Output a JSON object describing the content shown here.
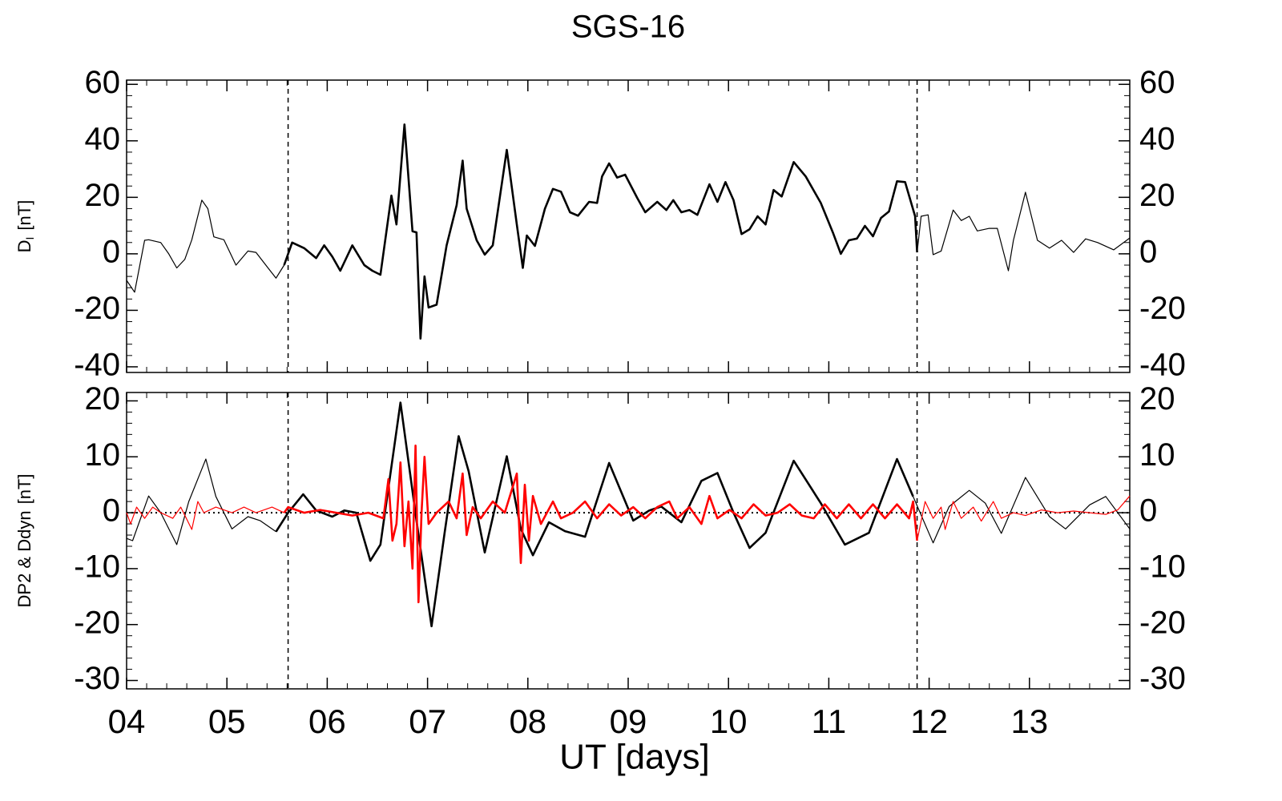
{
  "chart_data": [
    {
      "type": "line",
      "title": "SGS-16",
      "ylabel": {
        "main": "D",
        "sub": "I",
        "unit": "[nT]"
      },
      "xlim": [
        4,
        14
      ],
      "ylim": [
        -42,
        61.5
      ],
      "yticks": [
        -40,
        -20,
        0,
        20,
        40,
        60
      ],
      "x_minor": 5,
      "y_minor": 5,
      "vlines": [
        5.61,
        11.88
      ],
      "thick_between_vlines": true,
      "series": [
        {
          "color": "#000000",
          "x": [
            4.0,
            4.08,
            4.18,
            4.22,
            4.34,
            4.42,
            4.5,
            4.58,
            4.65,
            4.75,
            4.81,
            4.87,
            4.97,
            5.09,
            5.21,
            5.29,
            5.41,
            5.49,
            5.57,
            5.65,
            5.77,
            5.89,
            5.97,
            6.05,
            6.13,
            6.25,
            6.37,
            6.45,
            6.53,
            6.64,
            6.69,
            6.77,
            6.85,
            6.89,
            6.93,
            6.97,
            7.01,
            7.09,
            7.19,
            7.29,
            7.35,
            7.39,
            7.49,
            7.57,
            7.65,
            7.79,
            7.89,
            7.95,
            7.99,
            8.07,
            8.17,
            8.25,
            8.33,
            8.42,
            8.5,
            8.61,
            8.69,
            8.74,
            8.81,
            8.89,
            8.97,
            9.09,
            9.17,
            9.29,
            9.38,
            9.45,
            9.53,
            9.61,
            9.69,
            9.81,
            9.89,
            9.97,
            10.05,
            10.13,
            10.21,
            10.29,
            10.37,
            10.45,
            10.53,
            10.65,
            10.77,
            10.92,
            11.04,
            11.12,
            11.2,
            11.28,
            11.36,
            11.44,
            11.52,
            11.6,
            11.68,
            11.76,
            11.86,
            11.88,
            11.92,
            11.99,
            12.04,
            12.12,
            12.24,
            12.32,
            12.4,
            12.48,
            12.6,
            12.68,
            12.79,
            12.84,
            12.96,
            13.08,
            13.2,
            13.32,
            13.44,
            13.56,
            13.68,
            13.84,
            14.0
          ],
          "values": [
            -9.4,
            -13.6,
            4.8,
            5,
            4,
            0,
            -5,
            -2,
            5,
            19,
            16,
            6,
            5,
            -4,
            1,
            0.5,
            -5,
            -8.6,
            -4,
            4,
            2,
            -1.5,
            3,
            -1,
            -6,
            3,
            -4,
            -6,
            -7.4,
            20.6,
            10.4,
            45.8,
            8,
            7.6,
            -30,
            -8,
            -19,
            -18,
            3,
            17.2,
            33,
            16,
            4.8,
            -0.3,
            3,
            36.8,
            10.4,
            -5,
            6.5,
            2.8,
            16,
            23,
            22,
            14.7,
            13.5,
            18.4,
            18,
            27.4,
            32,
            27,
            28,
            19.8,
            14.7,
            18.4,
            15.5,
            19,
            14.7,
            15.5,
            13.8,
            24.6,
            18.4,
            25.4,
            19,
            7,
            8.7,
            13.3,
            10.4,
            22.6,
            20.3,
            32.5,
            27.4,
            18,
            7.6,
            0,
            4.8,
            5.4,
            9.9,
            6.2,
            12.7,
            15,
            25.7,
            25.4,
            13.3,
            0.5,
            13.3,
            13.8,
            -0.3,
            1,
            15.5,
            11.8,
            13.3,
            8.1,
            9,
            9,
            -6,
            4.8,
            21.8,
            4.8,
            2,
            4.8,
            0.5,
            5.3,
            4,
            1.4,
            5.6
          ]
        }
      ]
    },
    {
      "type": "line",
      "xlabel": "UT [days]",
      "ylabel": {
        "main": "DP2 & Ddyn",
        "unit": "[nT]"
      },
      "xlim": [
        4,
        14
      ],
      "ylim": [
        -31.5,
        21.5
      ],
      "yticks": [
        -30,
        -20,
        -10,
        0,
        10,
        20
      ],
      "xticks": [
        {
          "value": 4,
          "label": "04"
        },
        {
          "value": 5,
          "label": "05"
        },
        {
          "value": 6,
          "label": "06"
        },
        {
          "value": 7,
          "label": "07"
        },
        {
          "value": 8,
          "label": "08"
        },
        {
          "value": 9,
          "label": "09"
        },
        {
          "value": 10,
          "label": "10"
        },
        {
          "value": 11,
          "label": "11"
        },
        {
          "value": 12,
          "label": "12"
        },
        {
          "value": 13,
          "label": "13"
        }
      ],
      "x_minor": 5,
      "y_minor": 5,
      "vlines": [
        5.61,
        11.88
      ],
      "thick_between_vlines": true,
      "zero_line": true,
      "series": [
        {
          "color": "#000000",
          "x": [
            4.0,
            4.06,
            4.22,
            4.34,
            4.5,
            4.62,
            4.79,
            4.89,
            5.05,
            5.21,
            5.33,
            5.49,
            5.61,
            5.76,
            5.89,
            6.05,
            6.17,
            6.29,
            6.43,
            6.53,
            6.73,
            6.89,
            7.04,
            7.17,
            7.31,
            7.41,
            7.57,
            7.79,
            7.93,
            8.05,
            8.21,
            8.37,
            8.57,
            8.81,
            9.05,
            9.21,
            9.33,
            9.53,
            9.73,
            9.89,
            10.05,
            10.21,
            10.37,
            10.65,
            10.92,
            11.16,
            11.4,
            11.68,
            11.84,
            12.04,
            12.2,
            12.4,
            12.56,
            12.72,
            12.96,
            13.2,
            13.36,
            13.6,
            13.76,
            14.0
          ],
          "values": [
            -4.6,
            -5,
            3,
            0,
            -5.7,
            2,
            9.6,
            2.9,
            -2.9,
            -0.7,
            -1.4,
            -3.4,
            0,
            3.3,
            0.4,
            -0.7,
            0.4,
            0,
            -8.6,
            -5.7,
            19.7,
            -1.4,
            -20.3,
            -3.6,
            13.7,
            7.4,
            -7.1,
            10.1,
            -2.9,
            -7.6,
            -1.7,
            -3.3,
            -4.3,
            8.9,
            -1.4,
            0.4,
            1.1,
            -1.7,
            5.7,
            7.1,
            0,
            -6.3,
            -3.6,
            9.3,
            1.7,
            -5.7,
            -3.6,
            9.6,
            2.9,
            -5.4,
            1.1,
            4,
            1.7,
            -3.7,
            6.3,
            -0.7,
            -2.9,
            1.4,
            2.9,
            -2.9
          ]
        },
        {
          "color": "#ff0000",
          "x": [
            4.0,
            4.04,
            4.1,
            4.18,
            4.26,
            4.34,
            4.46,
            4.54,
            4.65,
            4.71,
            4.77,
            4.89,
            5.05,
            5.17,
            5.29,
            5.45,
            5.57,
            5.61,
            5.77,
            5.93,
            6.09,
            6.25,
            6.41,
            6.56,
            6.61,
            6.65,
            6.69,
            6.73,
            6.77,
            6.81,
            6.85,
            6.88,
            6.91,
            6.94,
            6.97,
            7.01,
            7.09,
            7.21,
            7.29,
            7.35,
            7.39,
            7.45,
            7.53,
            7.65,
            7.77,
            7.89,
            7.93,
            7.97,
            8.01,
            8.05,
            8.13,
            8.25,
            8.33,
            8.45,
            8.57,
            8.69,
            8.81,
            8.93,
            9.05,
            9.17,
            9.29,
            9.41,
            9.49,
            9.61,
            9.73,
            9.81,
            9.89,
            10.01,
            10.13,
            10.25,
            10.37,
            10.49,
            10.61,
            10.73,
            10.85,
            10.96,
            11.08,
            11.2,
            11.32,
            11.44,
            11.56,
            11.68,
            11.8,
            11.84,
            11.88,
            11.96,
            12.04,
            12.12,
            12.16,
            12.24,
            12.32,
            12.44,
            12.52,
            12.64,
            12.72,
            12.84,
            12.96,
            13.12,
            13.28,
            13.44,
            13.6,
            13.76,
            13.88,
            14.0
          ],
          "values": [
            0,
            -2,
            1,
            -1,
            1,
            0,
            -1,
            1,
            -3,
            2,
            0,
            1,
            0,
            1,
            0,
            1,
            0,
            1,
            0,
            0.5,
            0,
            -0.5,
            0,
            -1,
            6,
            -5,
            -2,
            9,
            -6,
            2,
            -10,
            12,
            -16,
            0,
            10,
            -2,
            0,
            2,
            -1,
            7,
            -4,
            1,
            -1,
            2,
            0,
            7,
            -9,
            5,
            -5,
            3,
            -2,
            2,
            -1,
            0,
            2,
            -1,
            1.5,
            -0.5,
            1,
            -1,
            1,
            2,
            -1,
            1,
            -2,
            3,
            -1,
            0.5,
            -1,
            1.5,
            -0.5,
            0,
            1.5,
            -0.5,
            -1,
            1.5,
            -1,
            1.5,
            -1,
            1.5,
            -1,
            1.5,
            -1,
            2,
            -5,
            2,
            -1,
            1,
            -3,
            2,
            -1,
            1,
            -1.5,
            2,
            -1,
            0,
            -0.5,
            0.5,
            0,
            0.3,
            0,
            -0.3,
            0.5,
            3
          ]
        }
      ]
    }
  ]
}
